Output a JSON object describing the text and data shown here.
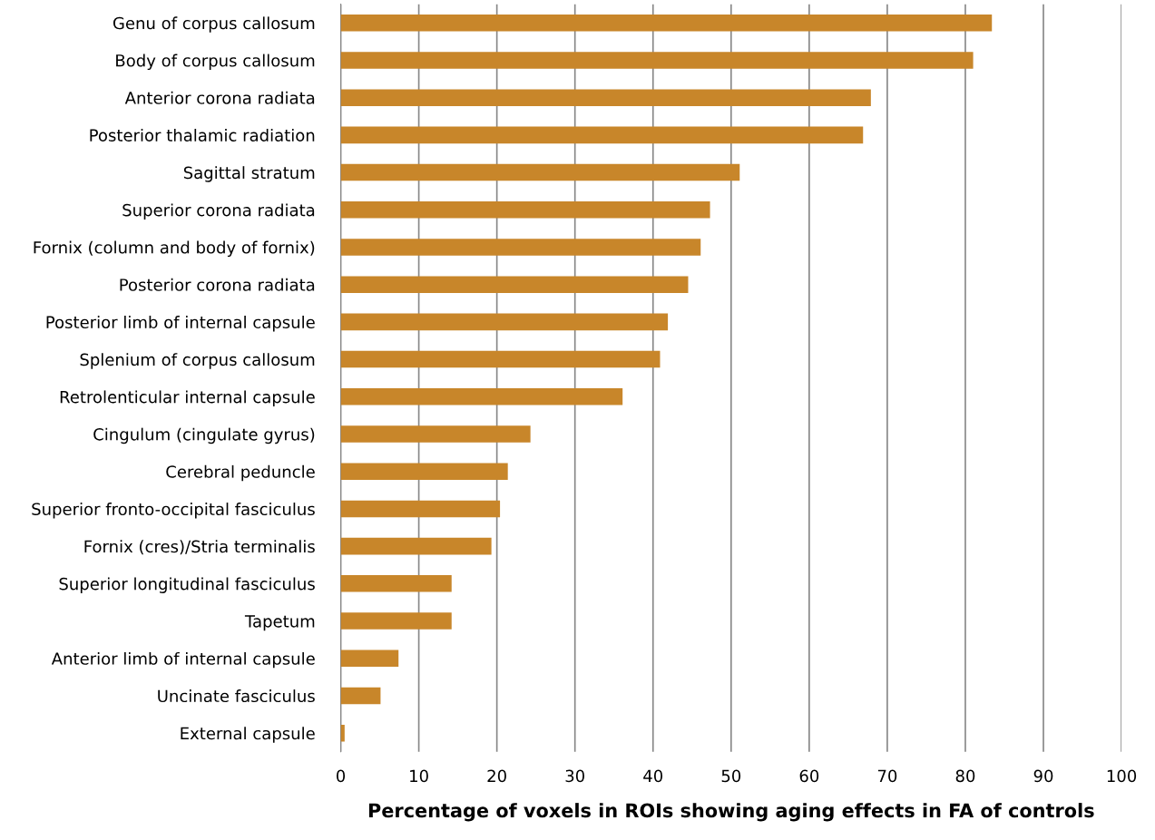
{
  "chart_data": {
    "type": "bar",
    "orientation": "horizontal",
    "xlabel": "Percentage of voxels in ROIs showing aging effects in FA of controls",
    "categories": [
      "Genu of corpus callosum",
      "Body of corpus callosum",
      "Anterior corona radiata",
      "Posterior thalamic radiation",
      "Sagittal stratum",
      "Superior corona radiata",
      "Fornix (column and body of fornix)",
      "Posterior corona radiata",
      "Posterior limb of internal capsule",
      "Splenium of corpus callosum",
      "Retrolenticular internal capsule",
      "Cingulum (cingulate gyrus)",
      "Cerebral peduncle",
      "Superior fronto-occipital fasciculus",
      "Fornix (cres)/Stria terminalis",
      "Superior longitudinal fasciculus",
      "Tapetum",
      "Anterior limb of internal capsule",
      "Uncinate fasciculus",
      "External capsule"
    ],
    "series": [
      {
        "color": "#c8862a",
        "values": [
          83.4,
          81.0,
          67.9,
          66.9,
          51.1,
          47.3,
          46.1,
          44.5,
          41.9,
          40.9,
          36.1,
          24.3,
          21.4,
          20.4,
          19.3,
          14.2,
          14.2,
          7.4,
          5.1,
          0.5
        ]
      }
    ],
    "xlim": [
      0,
      100
    ],
    "xticks": [
      0,
      10,
      20,
      30,
      40,
      50,
      60,
      70,
      80,
      90,
      100
    ],
    "grid": "x",
    "legend": false
  }
}
